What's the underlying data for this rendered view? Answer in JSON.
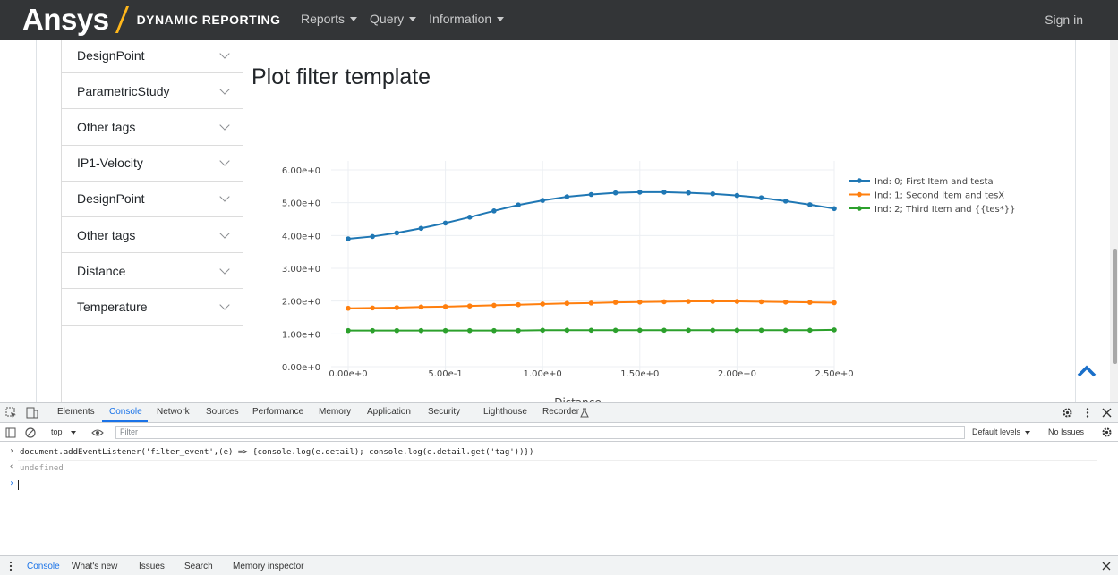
{
  "navbar": {
    "brand_name": "Ansys",
    "brand_subtitle": "DYNAMIC REPORTING",
    "menu": [
      {
        "label": "Reports"
      },
      {
        "label": "Query"
      },
      {
        "label": "Information"
      }
    ],
    "signin_label": "Sign in"
  },
  "sidebar": {
    "items": [
      {
        "label": "DesignPoint"
      },
      {
        "label": "ParametricStudy"
      },
      {
        "label": "Other tags"
      },
      {
        "label": "IP1-Velocity"
      },
      {
        "label": "DesignPoint"
      },
      {
        "label": "Other tags"
      },
      {
        "label": "Distance"
      },
      {
        "label": "Temperature"
      }
    ]
  },
  "main": {
    "title": "Plot filter template"
  },
  "chart_data": {
    "type": "line",
    "xlabel": "Distance",
    "ylabel": "",
    "xlim": [
      0,
      2.5
    ],
    "ylim": [
      0,
      6
    ],
    "x_ticks": [
      "0.00e+0",
      "5.00e-1",
      "1.00e+0",
      "1.50e+0",
      "2.00e+0",
      "2.50e+0"
    ],
    "y_ticks": [
      "0.00e+0",
      "1.00e+0",
      "2.00e+0",
      "3.00e+0",
      "4.00e+0",
      "5.00e+0",
      "6.00e+0"
    ],
    "x": [
      0.0,
      0.125,
      0.25,
      0.375,
      0.5,
      0.625,
      0.75,
      0.875,
      1.0,
      1.125,
      1.25,
      1.375,
      1.5,
      1.625,
      1.75,
      1.875,
      2.0,
      2.125,
      2.25,
      2.375,
      2.5
    ],
    "series": [
      {
        "name": "Ind: 0; First Item and testa",
        "color": "#1f77b4",
        "values": [
          3.9,
          3.97,
          4.08,
          4.22,
          4.38,
          4.56,
          4.75,
          4.93,
          5.07,
          5.18,
          5.25,
          5.3,
          5.32,
          5.32,
          5.3,
          5.27,
          5.22,
          5.15,
          5.05,
          4.94,
          4.82
        ]
      },
      {
        "name": "Ind: 1; Second Item and tesX",
        "color": "#ff7f0e",
        "values": [
          1.78,
          1.79,
          1.8,
          1.82,
          1.83,
          1.85,
          1.87,
          1.89,
          1.91,
          1.93,
          1.94,
          1.96,
          1.97,
          1.98,
          1.99,
          1.99,
          1.99,
          1.98,
          1.97,
          1.96,
          1.95
        ]
      },
      {
        "name": "Ind: 2; Third Item and {{tes*}}",
        "color": "#2ca02c",
        "values": [
          1.1,
          1.1,
          1.1,
          1.1,
          1.1,
          1.1,
          1.1,
          1.1,
          1.11,
          1.11,
          1.11,
          1.11,
          1.11,
          1.11,
          1.11,
          1.11,
          1.11,
          1.11,
          1.11,
          1.11,
          1.12
        ]
      }
    ],
    "legend_position": "right",
    "grid": true
  },
  "devtools": {
    "tabs": [
      {
        "label": "Elements"
      },
      {
        "label": "Console"
      },
      {
        "label": "Network"
      },
      {
        "label": "Sources"
      },
      {
        "label": "Performance"
      },
      {
        "label": "Memory"
      },
      {
        "label": "Application"
      },
      {
        "label": "Security"
      },
      {
        "label": "Lighthouse"
      },
      {
        "label": "Recorder"
      }
    ],
    "context": "top",
    "filter_placeholder": "Filter",
    "levels": "Default levels",
    "issues": "No Issues",
    "console_input": "document.addEventListener('filter_event',(e) => {console.log(e.detail); console.log(e.detail.get('tag'))})",
    "console_output": "undefined",
    "bottom_tabs": [
      {
        "label": "Console"
      },
      {
        "label": "What's new"
      },
      {
        "label": "Issues"
      },
      {
        "label": "Search"
      },
      {
        "label": "Memory inspector"
      }
    ]
  }
}
